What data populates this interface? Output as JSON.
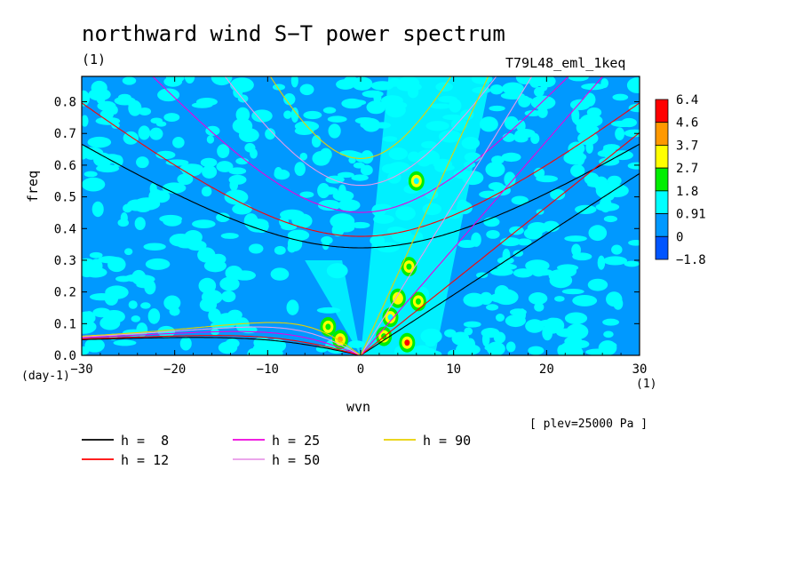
{
  "chart_data": {
    "type": "heatmap",
    "title": "northward wind S−T power spectrum",
    "subtitle_left": "(1)",
    "subtitle_right": "T79L48_eml_1keq",
    "xlabel": "wvn",
    "xunit": "(1)",
    "ylabel": "freq",
    "yunit": "(day-1)",
    "annotation": "[ plev=25000 Pa ]",
    "xlim": [
      -30,
      30
    ],
    "ylim": [
      0,
      0.88
    ],
    "xticks": [
      "−30",
      "−20",
      "−10",
      "0",
      "10",
      "20",
      "30"
    ],
    "xtick_values": [
      -30,
      -20,
      -10,
      0,
      10,
      20,
      30
    ],
    "yticks": [
      "0.0",
      "0.1",
      "0.2",
      "0.3",
      "0.4",
      "0.5",
      "0.6",
      "0.7",
      "0.8"
    ],
    "ytick_values": [
      0,
      0.1,
      0.2,
      0.3,
      0.4,
      0.5,
      0.6,
      0.7,
      0.8
    ],
    "colorbar": {
      "levels": [
        "6.4",
        "4.6",
        "3.7",
        "2.7",
        "1.8",
        "0.91",
        "0",
        "−1.8"
      ],
      "colors": [
        "#ff0000",
        "#ff9900",
        "#ffff00",
        "#00ee00",
        "#00ffff",
        "#0099ff",
        "#0055ff"
      ]
    },
    "background_level_color": "#0099ff",
    "series": [
      {
        "name": "h =  8",
        "h": 8,
        "color": "#000000"
      },
      {
        "name": "h = 12",
        "h": 12,
        "color": "#ff0000"
      },
      {
        "name": "h = 25",
        "h": 25,
        "color": "#ee00dd"
      },
      {
        "name": "h = 50",
        "h": 50,
        "color": "#e89ae8"
      },
      {
        "name": "h = 90",
        "h": 90,
        "color": "#e8d000"
      }
    ],
    "curve_families": [
      "eastward inertio-gravity (n=1)",
      "westward inertio-gravity (n=1)",
      "Rossby (n=1)",
      "Kelvin",
      "mixed Rossby-gravity"
    ],
    "hotspots": [
      {
        "x": -3.5,
        "y": 0.09,
        "level": "2.7"
      },
      {
        "x": -2.2,
        "y": 0.05,
        "level": "4.6"
      },
      {
        "x": 2.5,
        "y": 0.06,
        "level": "2.7"
      },
      {
        "x": 3.2,
        "y": 0.12,
        "level": "1.8"
      },
      {
        "x": 4.0,
        "y": 0.18,
        "level": "3.7"
      },
      {
        "x": 5.2,
        "y": 0.28,
        "level": "2.7"
      },
      {
        "x": 5.0,
        "y": 0.04,
        "level": "6.4"
      },
      {
        "x": 6.2,
        "y": 0.17,
        "level": "2.7"
      },
      {
        "x": 6.0,
        "y": 0.55,
        "level": "1.8"
      }
    ]
  }
}
